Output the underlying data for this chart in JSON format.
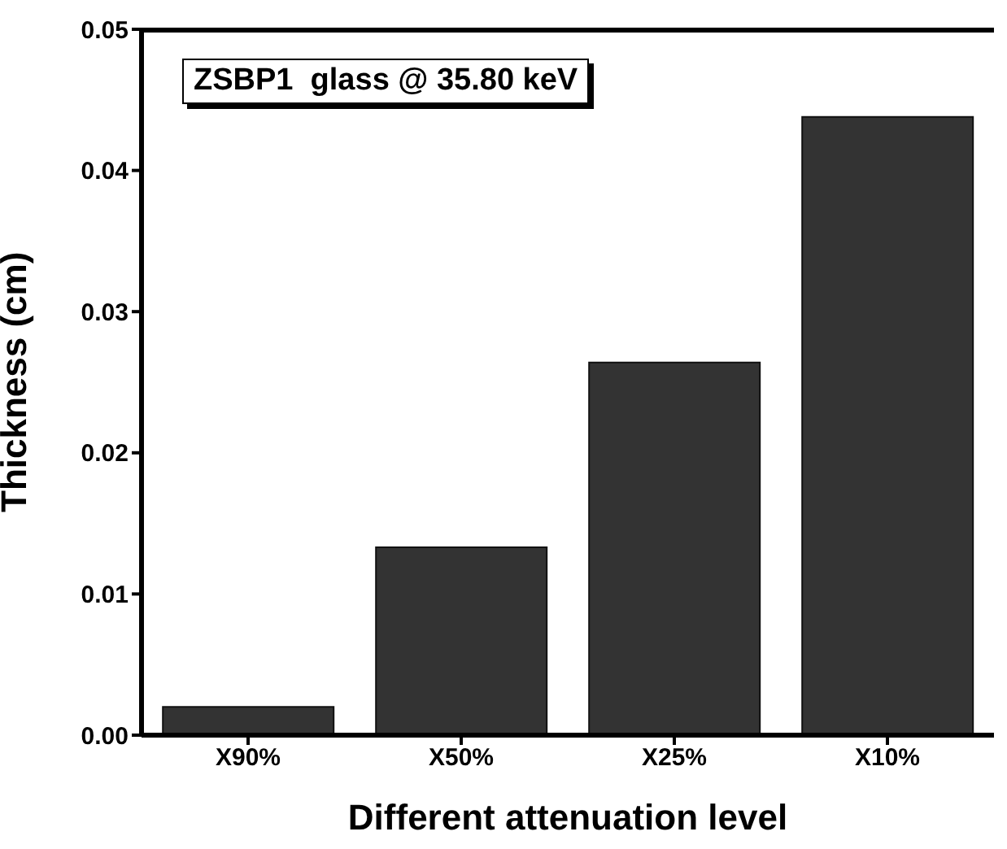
{
  "chart_data": {
    "type": "bar",
    "xlabel": "Different attenuation level",
    "ylabel": "Thickness (cm)",
    "categories": [
      "X90%",
      "X50%",
      "X25%",
      "X10%"
    ],
    "values": [
      0.002,
      0.0133,
      0.0264,
      0.0438
    ],
    "color": "#333333",
    "ylim": [
      0,
      0.05
    ],
    "yticks": [
      {
        "value": 0,
        "label": "0.00"
      },
      {
        "value": 0.01,
        "label": "0.01"
      },
      {
        "value": 0.02,
        "label": "0.02"
      },
      {
        "value": 0.03,
        "label": "0.03"
      },
      {
        "value": 0.04,
        "label": "0.04"
      },
      {
        "value": 0.05,
        "label": "0.05"
      }
    ],
    "annotations": [
      "ZSBP1  glass @ 35.80 keV"
    ],
    "grid": false
  }
}
